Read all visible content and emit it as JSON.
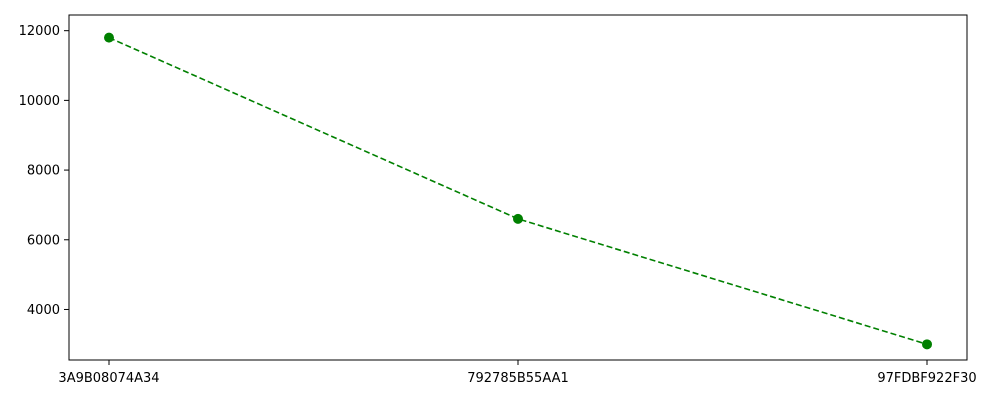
{
  "chart_data": {
    "type": "line",
    "title": "",
    "xlabel": "",
    "ylabel": "",
    "categories": [
      "3A9B08074A34",
      "792785B55AA1",
      "97FDBF922F30"
    ],
    "series": [
      {
        "values": [
          11800,
          6600,
          3000
        ],
        "color": "#008000",
        "line_style": "dashed",
        "marker": "circle"
      }
    ],
    "ylim": [
      2550,
      12450
    ],
    "yticks": [
      4000,
      6000,
      8000,
      10000,
      12000
    ],
    "ytick_labels": [
      "4000",
      "6000",
      "8000",
      "10000",
      "12000"
    ],
    "grid": false,
    "legend": "none"
  }
}
